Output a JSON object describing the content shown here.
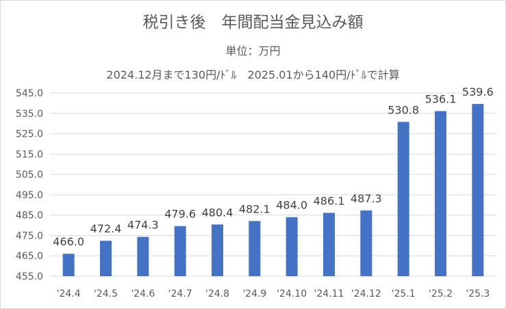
{
  "chart_data": {
    "type": "bar",
    "title": "税引き後　年間配当金見込み額",
    "subtitle": "単位：万円",
    "note": "2024.12月まで130円/ﾄﾞﾙ　2025.01から140円/ﾄﾞﾙで計算",
    "categories": [
      "'24.4",
      "'24.5",
      "'24.6",
      "'24.7",
      "'24.8",
      "'24.9",
      "'24.10",
      "'24.11",
      "'24.12",
      "'25.1",
      "'25.2",
      "'25.3"
    ],
    "values": [
      466.0,
      472.4,
      474.3,
      479.6,
      480.4,
      482.1,
      484.0,
      486.1,
      487.3,
      530.8,
      536.1,
      539.6
    ],
    "ylim": [
      455.0,
      545.0
    ],
    "yticks": [
      455.0,
      465.0,
      475.0,
      485.0,
      495.0,
      505.0,
      515.0,
      525.0,
      535.0,
      545.0
    ],
    "bar_color": "#4472C4",
    "grid": true,
    "legend": "none"
  }
}
